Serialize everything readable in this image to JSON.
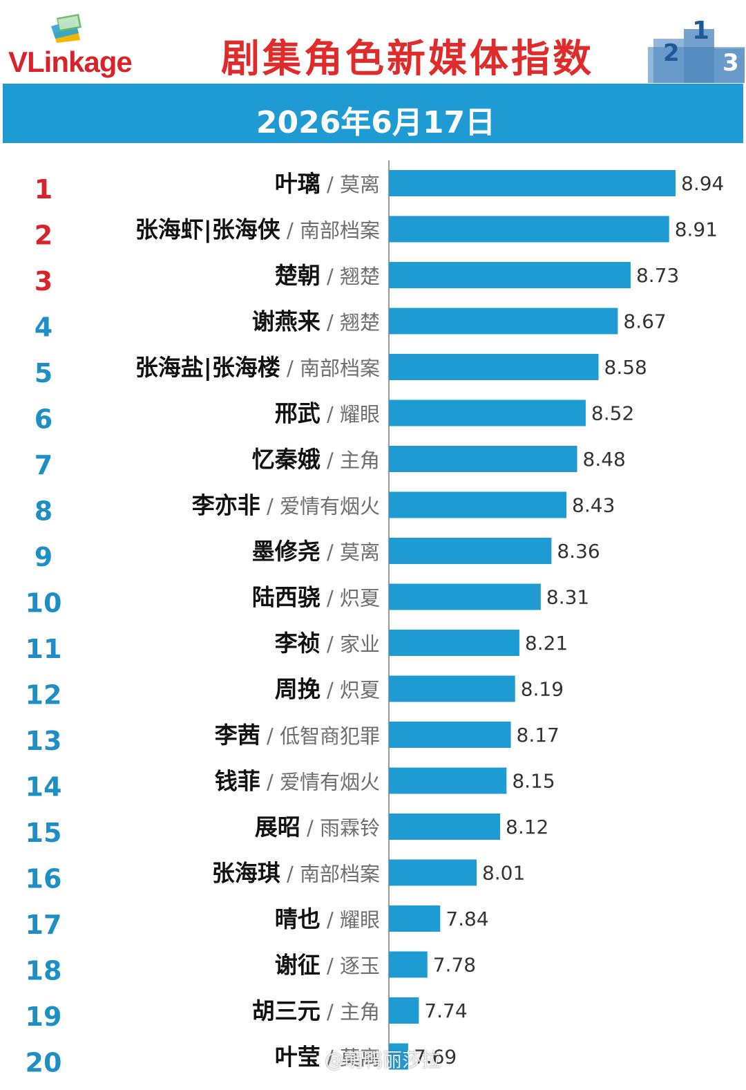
{
  "header": {
    "logo_text": "VLinkage",
    "title": "剧集角色新媒体指数",
    "date": "2026年6月17日"
  },
  "colors": {
    "title": "#e02b2b",
    "band": "#1e9bd3",
    "bar": "#1e9bd3",
    "rank_top3": "#d8232a",
    "rank_rest": "#1e8fc4"
  },
  "watermark": "@萌鸭丽莎拉",
  "chart_data": {
    "type": "bar",
    "orientation": "horizontal",
    "separator": " / ",
    "ranks": [
      "1",
      "2",
      "3",
      "4",
      "5",
      "6",
      "7",
      "8",
      "9",
      "10",
      "11",
      "12",
      "13",
      "14",
      "15",
      "16",
      "17",
      "18",
      "19",
      "20"
    ],
    "characters": [
      "叶璃",
      "张海虾|张海侠",
      "楚朝",
      "谢燕来",
      "张海盐|张海楼",
      "邢武",
      "忆秦娥",
      "李亦非",
      "墨修尧",
      "陆西骁",
      "李祯",
      "周挽",
      "李茜",
      "钱菲",
      "展昭",
      "张海琪",
      "晴也",
      "谢征",
      "胡三元",
      "叶莹"
    ],
    "dramas": [
      "莫离",
      "南部档案",
      "翘楚",
      "翘楚",
      "南部档案",
      "耀眼",
      "主角",
      "爱情有烟火",
      "莫离",
      "炽夏",
      "家业",
      "炽夏",
      "低智商犯罪",
      "爱情有烟火",
      "雨霖铃",
      "南部档案",
      "耀眼",
      "逐玉",
      "主角",
      "莫离"
    ],
    "values": [
      8.94,
      8.91,
      8.73,
      8.67,
      8.58,
      8.52,
      8.48,
      8.43,
      8.36,
      8.31,
      8.21,
      8.19,
      8.17,
      8.15,
      8.12,
      8.01,
      7.84,
      7.78,
      7.74,
      7.69
    ],
    "value_labels": [
      "8.94",
      "8.91",
      "8.73",
      "8.67",
      "8.58",
      "8.52",
      "8.48",
      "8.43",
      "8.36",
      "8.31",
      "8.21",
      "8.19",
      "8.17",
      "8.15",
      "8.12",
      "8.01",
      "7.84",
      "7.78",
      "7.74",
      "7.69"
    ],
    "xlim": [
      7.6,
      8.94
    ],
    "grid": false,
    "legend": "none"
  }
}
